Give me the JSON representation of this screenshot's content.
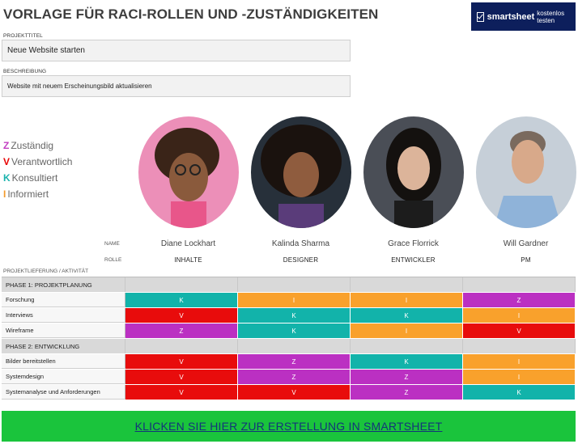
{
  "header": {
    "title": "VORLAGE FÜR RACI-ROLLEN UND -ZUSTÄNDIGKEITEN",
    "logo_brand": "smartsheet",
    "logo_sub": "kostenlos testen"
  },
  "project": {
    "title_label": "PROJEKTTITEL",
    "title_value": "Neue Website starten",
    "desc_label": "BESCHREIBUNG",
    "desc_value": "Website mit neuem Erscheinungsbild aktualisieren"
  },
  "legend": [
    {
      "letter": "Z",
      "text": "Zuständig",
      "color": "#c33fc2"
    },
    {
      "letter": "V",
      "text": "Verantwortlich",
      "color": "#e80000"
    },
    {
      "letter": "K",
      "text": "Konsultiert",
      "color": "#1ab3ad"
    },
    {
      "letter": "I",
      "text": "Informiert",
      "color": "#f39a2c"
    }
  ],
  "labels": {
    "name": "NAME",
    "role": "ROLLE",
    "deliverable": "PROJEKTLIEFERUNG / AKTIVITÄT"
  },
  "people": [
    {
      "name": "Diane Lockhart",
      "role": "INHALTE"
    },
    {
      "name": "Kalinda Sharma",
      "role": "DESIGNER"
    },
    {
      "name": "Grace Florrick",
      "role": "ENTWICKLER"
    },
    {
      "name": "Will Gardner",
      "role": "PM"
    }
  ],
  "rows": [
    {
      "type": "phase",
      "label": "PHASE 1: PROJEKTPLANUNG"
    },
    {
      "type": "task",
      "label": "Forschung",
      "cells": [
        "K",
        "I",
        "I",
        "Z"
      ]
    },
    {
      "type": "task",
      "label": "Interviews",
      "cells": [
        "V",
        "K",
        "K",
        "I"
      ]
    },
    {
      "type": "task",
      "label": "Wireframe",
      "cells": [
        "Z",
        "K",
        "I",
        "V"
      ]
    },
    {
      "type": "phase",
      "label": "PHASE 2: ENTWICKLUNG"
    },
    {
      "type": "task",
      "label": "Bilder bereitstellen",
      "cells": [
        "V",
        "Z",
        "K",
        "I"
      ]
    },
    {
      "type": "task",
      "label": "Systemdesign",
      "cells": [
        "V",
        "Z",
        "Z",
        "I"
      ]
    },
    {
      "type": "task",
      "label": "Systemanalyse und Anforderungen",
      "cells": [
        "V",
        "V",
        "Z",
        "K"
      ]
    }
  ],
  "colors": {
    "Z": "#bb30c2",
    "V": "#e80c0c",
    "K": "#12b3aa",
    "I": "#f9a12c"
  },
  "cta": {
    "text": "KLICKEN SIE HIER ZUR ERSTELLUNG IN SMARTSHEET"
  }
}
